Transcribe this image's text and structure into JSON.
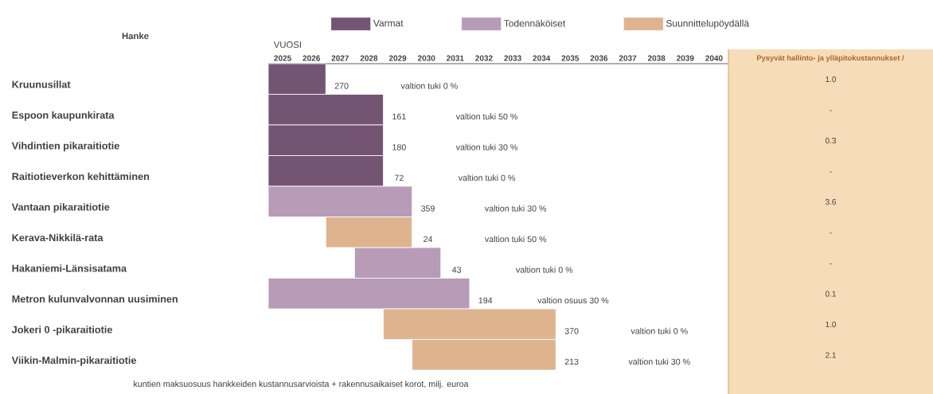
{
  "chart_data": [
    {
      "type": "bar",
      "orientation": "horizontal",
      "xlabel": "VUOSI",
      "ylabel": "Hanke",
      "legend": "top",
      "categories": [
        "Kruunusillat",
        "Espoon kaupunkirata",
        "Vihdintien pikaraitiotie",
        "Raitiotieverkon kehittäminen",
        "Vantaan pikaraitiotie",
        "Kerava-Nikkilä-rata",
        "Hakaniemi-Länsisatama",
        "Metron kulunvalvonnan uusiminen",
        "Jokeri 0 -pikaraitiotie",
        "Viikin-Malmin-pikaraitiotie"
      ],
      "series": [
        {
          "name": "Varmat",
          "color": "#735573",
          "values": [
            2,
            4,
            4,
            4,
            null,
            null,
            null,
            null,
            null,
            null
          ],
          "base": [
            2024.5,
            2024.5,
            2024.5,
            2024.5,
            null,
            null,
            null,
            null,
            null,
            null
          ]
        },
        {
          "name": "Todennäköiset",
          "color": "#b79bb7",
          "values": [
            null,
            null,
            null,
            null,
            5,
            null,
            3,
            7,
            null,
            null
          ],
          "base": [
            null,
            null,
            null,
            null,
            2024.5,
            null,
            2027.5,
            2024.5,
            null,
            null
          ]
        },
        {
          "name": "Suunnittelupöydällä",
          "color": "#deb48f",
          "values": [
            null,
            null,
            null,
            null,
            null,
            3,
            null,
            null,
            6,
            5
          ],
          "base": [
            null,
            null,
            null,
            null,
            null,
            2026.5,
            null,
            null,
            2028.5,
            2029.5
          ]
        }
      ],
      "xlim": [
        2024.5,
        2040.5
      ],
      "xticks": [
        2025,
        2026,
        2027,
        2028,
        2029,
        2030,
        2031,
        2032,
        2033,
        2034,
        2035,
        2036,
        2037,
        2038,
        2039,
        2040
      ],
      "annotations": [
        "270",
        "valtion tuki 0 %",
        "161",
        "valtion tuki 50 %",
        "180",
        "valtion tuki 30 %",
        "72",
        "valtion tuki 0 %",
        "359",
        "valtion tuki 30 %",
        "24",
        "valtion tuki 50 %",
        "43",
        "valtion tuki 0 %",
        "194",
        "valtion osuus 30 %",
        "370",
        "valtion tuki 0 %",
        "213",
        "valtion tuki 30 %",
        "kuntien maksuosuus hankkeiden kustannusarvioista + rakennusaikaiset korot, milj. euroa"
      ]
    },
    {
      "type": "other",
      "title": "Pysyvät hallinto- ja ylläpitokustannukset /",
      "annotations": [
        "1.0",
        "-",
        "0.3",
        "-",
        "3.6",
        "-",
        "-",
        "0.1",
        "1.0",
        "2.1"
      ]
    }
  ]
}
